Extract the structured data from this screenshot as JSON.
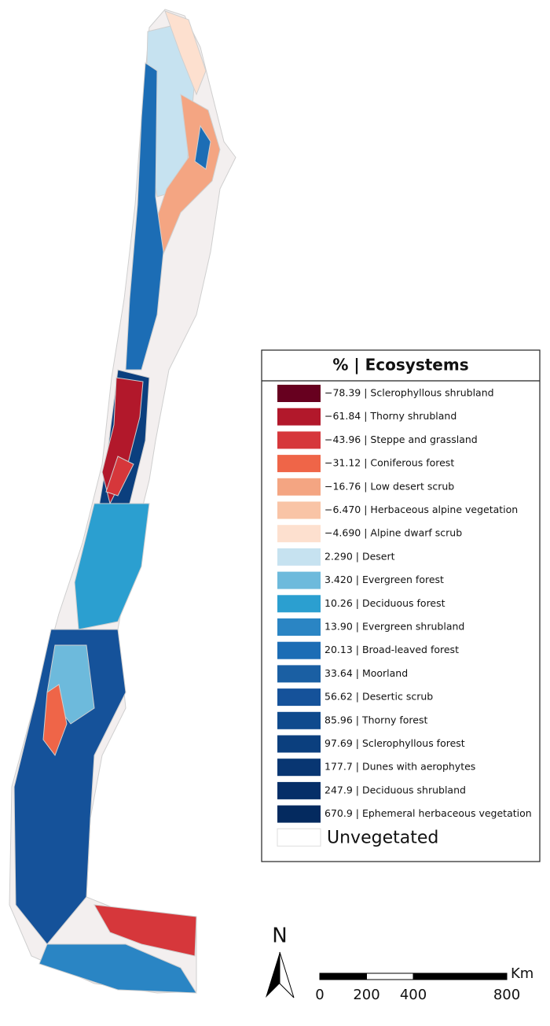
{
  "legend": {
    "title": "% | Ecosystems",
    "entries": [
      {
        "text": "−78.39 | Sclerophyllous shrubland",
        "color": "#67001f"
      },
      {
        "text": "−61.84 | Thorny shrubland",
        "color": "#b2182b"
      },
      {
        "text": "−43.96 | Steppe and grassland",
        "color": "#d6373b"
      },
      {
        "text": "−31.12 | Coniferous forest",
        "color": "#ef6548"
      },
      {
        "text": "−16.76 | Low desert scrub",
        "color": "#f4a582"
      },
      {
        "text": "−6.470 | Herbaceous alpine vegetation",
        "color": "#f9c4a6"
      },
      {
        "text": "−4.690 | Alpine dwarf scrub",
        "color": "#fde0cf"
      },
      {
        "text": "2.290 | Desert",
        "color": "#c6e2f0"
      },
      {
        "text": "3.420 | Evergreen forest",
        "color": "#6dbadc"
      },
      {
        "text": "10.26 | Deciduous forest",
        "color": "#2b9fd0"
      },
      {
        "text": "13.90 | Evergreen shrubland",
        "color": "#2a85c4"
      },
      {
        "text": "20.13 | Broad-leaved forest",
        "color": "#1c6db5"
      },
      {
        "text": "33.64 | Moorland",
        "color": "#1a5fa3"
      },
      {
        "text": "56.62 | Desertic scrub",
        "color": "#15529a"
      },
      {
        "text": "85.96 | Thorny forest",
        "color": "#0f4a8d"
      },
      {
        "text": "97.69 | Sclerophyllous forest",
        "color": "#0b3f7e"
      },
      {
        "text": "177.7 | Dunes with aerophytes",
        "color": "#083672"
      },
      {
        "text": "247.9 | Deciduous shrubland",
        "color": "#062f68"
      },
      {
        "text": "670.9 | Ephemeral herbaceous vegetation",
        "color": "#042a5f"
      }
    ],
    "unvegetated": {
      "text": "Unvegetated",
      "color": "#ffffff"
    }
  },
  "north_arrow": "N",
  "scale_bar": {
    "unit": "Km",
    "ticks": [
      0,
      200,
      400,
      800
    ]
  }
}
